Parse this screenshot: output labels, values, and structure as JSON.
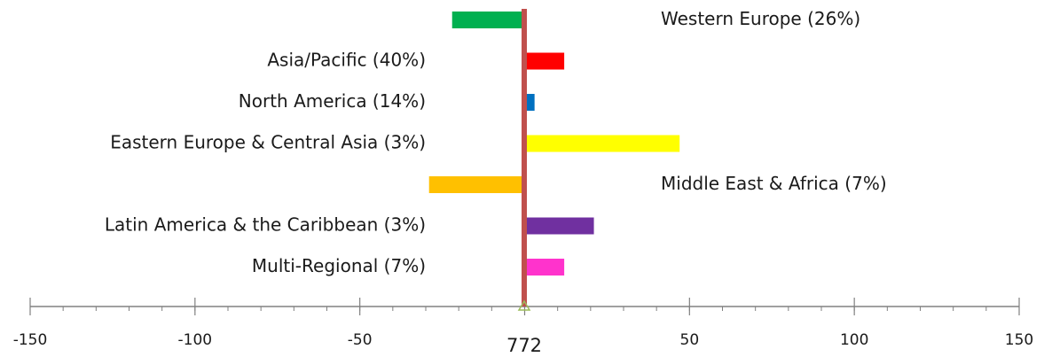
{
  "chart_data": {
    "type": "bar",
    "orientation": "horizontal",
    "categories": [
      "Western Europe (26%)",
      "Asia/Pacific (40%)",
      "North America (14%)",
      "Eastern Europe & Central Asia (3%)",
      "Middle East & Africa (7%)",
      "Latin America & the Caribbean (3%)",
      "Multi-Regional (7%)"
    ],
    "values": [
      -22,
      12,
      3,
      47,
      -29,
      21,
      12
    ],
    "colors": [
      "#00b050",
      "#ff0000",
      "#0070c0",
      "#ffff00",
      "#ffc000",
      "#7030a0",
      "#ff33cc"
    ],
    "xlim": [
      -150,
      150
    ],
    "xticks": [
      -150,
      -100,
      -50,
      50,
      100,
      150
    ],
    "center_label": "772",
    "center_line_color": "#c0504d",
    "grid": false,
    "legend": "none"
  }
}
